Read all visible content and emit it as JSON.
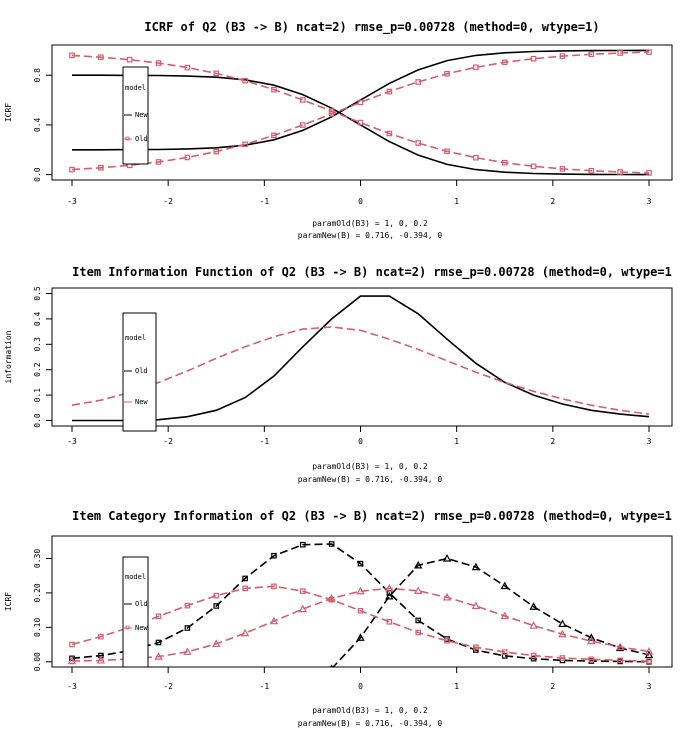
{
  "colors": {
    "black": "#000000",
    "red": "#d45f6f"
  },
  "chart_data": [
    {
      "type": "line",
      "title": "ICRF of Q2 (B3 -> B)  ncat=2)  rmse_p=0.00728 (method=0, wtype=1)",
      "ylabel": "ICRF",
      "xlim": [
        -3,
        3
      ],
      "ylim": [
        0,
        1
      ],
      "x_ticks": [
        "-3",
        "-2",
        "-1",
        "0",
        "1",
        "2",
        "3"
      ],
      "y_ticks": [
        "0.0",
        "0.4",
        "0.8"
      ],
      "y_tick_values": [
        0,
        0.4,
        0.8
      ],
      "subtitle_lines": [
        "paramOld(B3) = 1,  0,  0.2",
        "paramNew(B) = 0.716,  -0.394,  0"
      ],
      "legend": {
        "title": "model",
        "entries": [
          "New",
          "Old"
        ]
      },
      "x": [
        -3,
        -2.7,
        -2.4,
        -2.1,
        -1.8,
        -1.5,
        -1.2,
        -0.9,
        -0.6,
        -0.3,
        0,
        0.3,
        0.6,
        0.9,
        1.2,
        1.5,
        1.8,
        2.1,
        2.4,
        2.7,
        3
      ],
      "series": [
        {
          "color": "black",
          "dash": false,
          "marker": "none",
          "values": [
            0.8,
            0.8,
            0.799,
            0.798,
            0.793,
            0.784,
            0.763,
            0.72,
            0.644,
            0.535,
            0.4,
            0.266,
            0.157,
            0.082,
            0.04,
            0.019,
            0.009,
            0.004,
            0.002,
            0.001,
            0.0
          ]
        },
        {
          "color": "black",
          "dash": false,
          "marker": "none",
          "values": [
            0.2,
            0.2,
            0.201,
            0.202,
            0.207,
            0.216,
            0.237,
            0.28,
            0.356,
            0.465,
            0.6,
            0.734,
            0.843,
            0.918,
            0.96,
            0.981,
            0.991,
            0.996,
            0.998,
            0.999,
            1.0
          ]
        },
        {
          "color": "red",
          "dash": true,
          "marker": "square",
          "values": [
            0.96,
            0.945,
            0.925,
            0.898,
            0.862,
            0.815,
            0.756,
            0.684,
            0.601,
            0.511,
            0.419,
            0.331,
            0.254,
            0.188,
            0.136,
            0.096,
            0.067,
            0.046,
            0.031,
            0.021,
            0.014
          ]
        },
        {
          "color": "red",
          "dash": true,
          "marker": "square",
          "values": [
            0.04,
            0.055,
            0.075,
            0.102,
            0.138,
            0.185,
            0.244,
            0.316,
            0.399,
            0.489,
            0.581,
            0.669,
            0.746,
            0.812,
            0.864,
            0.904,
            0.933,
            0.954,
            0.969,
            0.979,
            0.986
          ]
        }
      ]
    },
    {
      "type": "line",
      "title": "Item Information Function of Q2 (B3 -> B)  ncat=2)  rmse_p=0.00728 (method=0, wtype=1",
      "ylabel": "information",
      "xlim": [
        -3,
        3
      ],
      "ylim": [
        0,
        0.5
      ],
      "x_ticks": [
        "-3",
        "-2",
        "-1",
        "0",
        "1",
        "2",
        "3"
      ],
      "y_ticks": [
        "0.0",
        "0.1",
        "0.2",
        "0.3",
        "0.4",
        "0.5"
      ],
      "y_tick_values": [
        0,
        0.1,
        0.2,
        0.3,
        0.4,
        0.5
      ],
      "subtitle_lines": [
        "paramOld(B3) = 1,  0,  0.2",
        "paramNew(B) = 0.716,  -0.394,  0"
      ],
      "legend": {
        "title": "model",
        "entries": [
          "Old",
          "New"
        ]
      },
      "x": [
        -3,
        -2.7,
        -2.4,
        -2.1,
        -1.8,
        -1.5,
        -1.2,
        -0.9,
        -0.6,
        -0.3,
        0,
        0.3,
        0.6,
        0.9,
        1.2,
        1.5,
        1.8,
        2.1,
        2.4,
        2.7,
        3
      ],
      "series": [
        {
          "color": "black",
          "dash": false,
          "marker": "none",
          "values": [
            0.0,
            0.0,
            0.0,
            0.003,
            0.015,
            0.04,
            0.09,
            0.175,
            0.29,
            0.4,
            0.49,
            0.49,
            0.42,
            0.32,
            0.225,
            0.15,
            0.1,
            0.065,
            0.04,
            0.025,
            0.015
          ]
        },
        {
          "color": "red",
          "dash": true,
          "marker": "none",
          "values": [
            0.06,
            0.08,
            0.11,
            0.15,
            0.195,
            0.245,
            0.29,
            0.33,
            0.36,
            0.368,
            0.355,
            0.32,
            0.28,
            0.235,
            0.19,
            0.15,
            0.115,
            0.085,
            0.06,
            0.04,
            0.025
          ]
        }
      ]
    },
    {
      "type": "line",
      "title": "Item Category Information of Q2 (B3 -> B)  ncat=2)  rmse_p=0.00728 (method=0, wtype=1",
      "ylabel": "ICRF",
      "xlim": [
        -3,
        3
      ],
      "ylim": [
        0,
        0.35
      ],
      "x_ticks": [
        "-3",
        "-2",
        "-1",
        "0",
        "1",
        "2",
        "3"
      ],
      "y_ticks": [
        "0.00",
        "0.10",
        "0.20",
        "0.30"
      ],
      "y_tick_values": [
        0,
        0.1,
        0.2,
        0.3
      ],
      "subtitle_lines": [
        "paramOld(B3) = 1,  0,  0.2",
        "paramNew(B) = 0.716,  -0.394,  0"
      ],
      "legend": {
        "title": "model",
        "entries": [
          "Old",
          "New"
        ]
      },
      "x": [
        -3,
        -2.7,
        -2.4,
        -2.1,
        -1.8,
        -1.5,
        -1.2,
        -0.9,
        -0.6,
        -0.3,
        0,
        0.3,
        0.6,
        0.9,
        1.2,
        1.5,
        1.8,
        2.1,
        2.4,
        2.7,
        3
      ],
      "series": [
        {
          "color": "black",
          "dash": true,
          "marker": "square",
          "values": [
            0.01,
            0.018,
            0.032,
            0.056,
            0.098,
            0.162,
            0.242,
            0.308,
            0.34,
            0.342,
            0.285,
            0.2,
            0.12,
            0.066,
            0.034,
            0.017,
            0.009,
            0.004,
            0.002,
            0.001,
            0.0
          ]
        },
        {
          "color": "black",
          "dash": true,
          "marker": "triangle",
          "values": [
            null,
            null,
            null,
            null,
            null,
            null,
            null,
            null,
            null,
            -0.02,
            0.07,
            0.19,
            0.28,
            0.3,
            0.275,
            0.22,
            0.16,
            0.11,
            0.07,
            0.04,
            0.02
          ]
        },
        {
          "color": "red",
          "dash": true,
          "marker": "square",
          "values": [
            0.05,
            0.073,
            0.1,
            0.132,
            0.163,
            0.192,
            0.213,
            0.219,
            0.205,
            0.18,
            0.148,
            0.116,
            0.085,
            0.061,
            0.042,
            0.028,
            0.018,
            0.011,
            0.007,
            0.004,
            0.002
          ]
        },
        {
          "color": "red",
          "dash": true,
          "marker": "triangle",
          "values": [
            0.002,
            0.004,
            0.008,
            0.015,
            0.029,
            0.052,
            0.083,
            0.118,
            0.153,
            0.184,
            0.205,
            0.213,
            0.206,
            0.187,
            0.162,
            0.133,
            0.105,
            0.08,
            0.06,
            0.043,
            0.03
          ]
        }
      ]
    }
  ]
}
